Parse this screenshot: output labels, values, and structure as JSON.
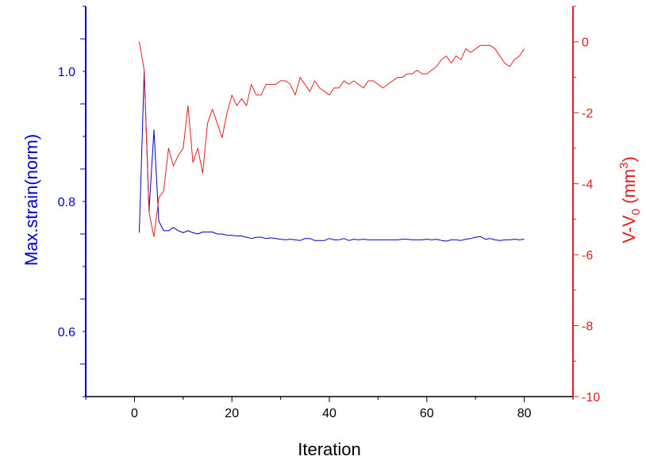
{
  "chart_data": {
    "type": "line",
    "xlabel": "Iteration",
    "ylabel_left": "Max.strain(norm)",
    "ylabel_right_main": "V-V",
    "ylabel_right_sub": "0",
    "ylabel_right_unit_open": " (mm",
    "ylabel_right_unit_sup": "3",
    "ylabel_right_unit_close": ")",
    "xlim": [
      -10,
      90
    ],
    "ylim_left": [
      0.5,
      1.1
    ],
    "ylim_right": [
      -10,
      1
    ],
    "x_ticks": [
      0,
      20,
      40,
      60,
      80
    ],
    "x_tick_labels": [
      "0",
      "20",
      "40",
      "60",
      "80"
    ],
    "y_left_ticks": [
      0.6,
      0.8,
      1.0
    ],
    "y_left_tick_labels": [
      "0.6",
      "0.8",
      "1.0"
    ],
    "y_right_ticks": [
      -10,
      -8,
      -6,
      -4,
      -2,
      0
    ],
    "y_right_tick_labels": [
      "-10",
      "-8",
      "-6",
      "-4",
      "-2",
      "0"
    ],
    "left_axis_color": "#0000cc",
    "right_axis_color": "#e02020",
    "grid": false,
    "series": [
      {
        "axis": "left",
        "color": "#0000cc",
        "x": [
          1,
          2,
          3,
          4,
          5,
          6,
          7,
          8,
          9,
          10,
          11,
          12,
          13,
          14,
          15,
          16,
          17,
          18,
          19,
          20,
          21,
          22,
          23,
          24,
          25,
          26,
          27,
          28,
          29,
          30,
          31,
          32,
          33,
          34,
          35,
          36,
          37,
          38,
          39,
          40,
          41,
          42,
          43,
          44,
          45,
          46,
          47,
          48,
          49,
          50,
          51,
          52,
          53,
          54,
          55,
          56,
          57,
          58,
          59,
          60,
          61,
          62,
          63,
          64,
          65,
          66,
          67,
          68,
          69,
          70,
          71,
          72,
          73,
          74,
          75,
          76,
          77,
          78,
          79,
          80
        ],
        "values": [
          0.752,
          1.0,
          0.785,
          0.91,
          0.77,
          0.755,
          0.755,
          0.76,
          0.755,
          0.752,
          0.755,
          0.752,
          0.75,
          0.753,
          0.753,
          0.753,
          0.75,
          0.75,
          0.748,
          0.748,
          0.747,
          0.747,
          0.745,
          0.743,
          0.745,
          0.745,
          0.743,
          0.744,
          0.743,
          0.742,
          0.741,
          0.742,
          0.741,
          0.74,
          0.743,
          0.743,
          0.74,
          0.74,
          0.74,
          0.743,
          0.741,
          0.741,
          0.743,
          0.74,
          0.742,
          0.741,
          0.742,
          0.741,
          0.741,
          0.741,
          0.741,
          0.741,
          0.741,
          0.741,
          0.742,
          0.742,
          0.741,
          0.741,
          0.741,
          0.742,
          0.741,
          0.742,
          0.74,
          0.739,
          0.741,
          0.741,
          0.74,
          0.742,
          0.743,
          0.745,
          0.746,
          0.742,
          0.743,
          0.741,
          0.74,
          0.741,
          0.741,
          0.742,
          0.741,
          0.742
        ]
      },
      {
        "axis": "right",
        "color": "#e02020",
        "x": [
          1,
          2,
          3,
          4,
          5,
          6,
          7,
          8,
          9,
          10,
          11,
          12,
          13,
          14,
          15,
          16,
          17,
          18,
          19,
          20,
          21,
          22,
          23,
          24,
          25,
          26,
          27,
          28,
          29,
          30,
          31,
          32,
          33,
          34,
          35,
          36,
          37,
          38,
          39,
          40,
          41,
          42,
          43,
          44,
          45,
          46,
          47,
          48,
          49,
          50,
          51,
          52,
          53,
          54,
          55,
          56,
          57,
          58,
          59,
          60,
          61,
          62,
          63,
          64,
          65,
          66,
          67,
          68,
          69,
          70,
          71,
          72,
          73,
          74,
          75,
          76,
          77,
          78,
          79,
          80
        ],
        "values": [
          0.0,
          -0.8,
          -4.8,
          -5.5,
          -4.4,
          -4.2,
          -3.0,
          -3.5,
          -3.2,
          -3.0,
          -1.8,
          -3.4,
          -3.0,
          -3.7,
          -2.3,
          -1.9,
          -2.3,
          -2.7,
          -2.0,
          -1.5,
          -1.8,
          -1.6,
          -1.8,
          -1.2,
          -1.5,
          -1.5,
          -1.2,
          -1.2,
          -1.2,
          -1.1,
          -1.1,
          -1.2,
          -1.5,
          -1.0,
          -1.2,
          -1.4,
          -1.1,
          -1.3,
          -1.4,
          -1.5,
          -1.3,
          -1.3,
          -1.1,
          -1.2,
          -1.1,
          -1.2,
          -1.3,
          -1.1,
          -1.1,
          -1.2,
          -1.3,
          -1.2,
          -1.1,
          -1.0,
          -1.0,
          -0.9,
          -0.9,
          -0.8,
          -0.9,
          -0.9,
          -0.8,
          -0.7,
          -0.5,
          -0.4,
          -0.6,
          -0.4,
          -0.5,
          -0.2,
          -0.3,
          -0.2,
          -0.1,
          -0.1,
          -0.1,
          -0.2,
          -0.4,
          -0.6,
          -0.7,
          -0.5,
          -0.4,
          -0.2
        ]
      }
    ]
  }
}
